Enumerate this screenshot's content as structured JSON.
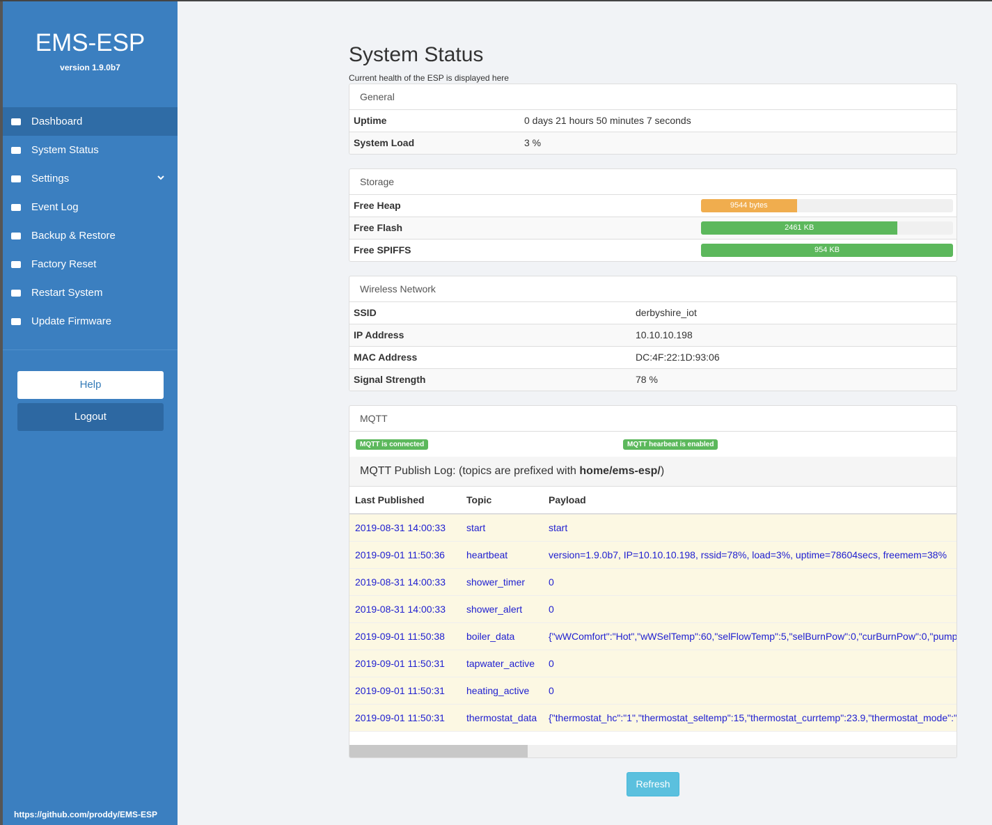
{
  "sidebar": {
    "title": "EMS-ESP",
    "version": "version 1.9.0b7",
    "menu": [
      "Dashboard",
      "System Status",
      "Settings",
      "Event Log",
      "Backup & Restore",
      "Factory Reset",
      "Restart System",
      "Update Firmware"
    ],
    "help": "Help",
    "logout": "Logout",
    "footer": "https://github.com/proddy/EMS-ESP"
  },
  "page": {
    "title": "System Status",
    "subtitle": "Current health of the ESP is displayed here"
  },
  "general": {
    "heading": "General",
    "rows": [
      [
        "Uptime",
        "0 days 21 hours 50 minutes 7 seconds"
      ],
      [
        "System Load",
        "3 %"
      ]
    ]
  },
  "storage": {
    "heading": "Storage",
    "rows": [
      {
        "label": "Free Heap",
        "text": "9544 bytes",
        "percent": 38,
        "color": "#f0ad4e"
      },
      {
        "label": "Free Flash",
        "text": "2461 KB",
        "percent": 78,
        "color": "#5cb85c"
      },
      {
        "label": "Free SPIFFS",
        "text": "954 KB",
        "percent": 100,
        "color": "#5cb85c"
      }
    ]
  },
  "wireless": {
    "heading": "Wireless Network",
    "rows": [
      [
        "SSID",
        "derbyshire_iot"
      ],
      [
        "IP Address",
        "10.10.10.198"
      ],
      [
        "MAC Address",
        "DC:4F:22:1D:93:06"
      ],
      [
        "Signal Strength",
        "78 %"
      ]
    ]
  },
  "mqtt": {
    "heading": "MQTT",
    "badges": [
      "MQTT is connected",
      "MQTT hearbeat is enabled"
    ],
    "log_title": {
      "prefix": "MQTT Publish Log: (topics are prefixed with ",
      "topic": "home/ems-esp/",
      "suffix": ")"
    },
    "columns": [
      "Last Published",
      "Topic",
      "Payload"
    ],
    "rows": [
      [
        "2019-08-31 14:00:33",
        "start",
        "start"
      ],
      [
        "2019-09-01 11:50:36",
        "heartbeat",
        "version=1.9.0b7, IP=10.10.10.198, rssid=78%, load=3%, uptime=78604secs, freemem=38%"
      ],
      [
        "2019-08-31 14:00:33",
        "shower_timer",
        "0"
      ],
      [
        "2019-08-31 14:00:33",
        "shower_alert",
        "0"
      ],
      [
        "2019-09-01 11:50:38",
        "boiler_data",
        "{\"wWComfort\":\"Hot\",\"wWSelTemp\":60,\"selFlowTemp\":5,\"selBurnPow\":0,\"curBurnPow\":0,\"pump"
      ],
      [
        "2019-09-01 11:50:31",
        "tapwater_active",
        "0"
      ],
      [
        "2019-09-01 11:50:31",
        "heating_active",
        "0"
      ],
      [
        "2019-09-01 11:50:31",
        "thermostat_data",
        "{\"thermostat_hc\":\"1\",\"thermostat_seltemp\":15,\"thermostat_currtemp\":23.9,\"thermostat_mode\":\""
      ]
    ]
  },
  "refresh": "Refresh"
}
